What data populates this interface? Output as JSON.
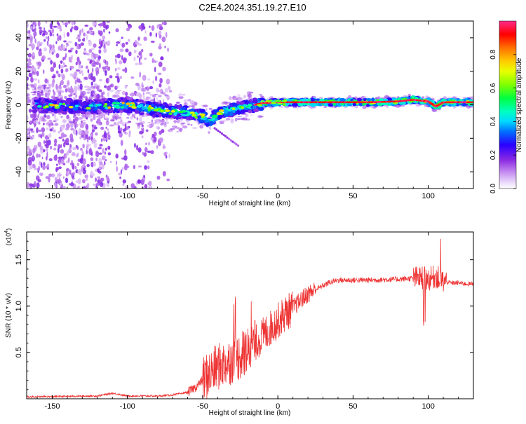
{
  "title": "C2E4.2024.351.19.27.E10",
  "chart_data": [
    {
      "type": "heatmap",
      "xlabel": "Height of straight line (km)",
      "ylabel": "Frequency (Hz)",
      "xlim": [
        -167,
        130
      ],
      "ylim": [
        -50,
        50
      ],
      "x_ticks": [
        -150,
        -100,
        -50,
        0,
        50,
        100
      ],
      "y_ticks": [
        -40,
        -20,
        0,
        20,
        40
      ],
      "colorbar": {
        "label": "Normalized spectral amplitude",
        "range": [
          0,
          1
        ],
        "ticks": [
          "0.0",
          "0.2",
          "0.4",
          "0.6",
          "0.8"
        ],
        "colors": [
          "#ffffff",
          "#d9b3f5",
          "#8b2be2",
          "#2a00ff",
          "#00b0ff",
          "#00ffd0",
          "#00ff00",
          "#c8ff00",
          "#ffff00",
          "#ff9000",
          "#ff0000",
          "#ff2a8a"
        ]
      },
      "ridge": {
        "x": [
          -160,
          -140,
          -120,
          -100,
          -80,
          -60,
          -50,
          -45,
          -40,
          -30,
          -20,
          -10,
          0,
          20,
          40,
          60,
          80,
          90,
          100,
          105,
          110,
          130
        ],
        "y": [
          0,
          -1,
          -1,
          0,
          -3,
          -5,
          -7,
          -10,
          -5,
          -3,
          -1,
          1,
          1.5,
          1.5,
          1.5,
          1.5,
          2,
          3,
          2,
          -1,
          1.5,
          1.5
        ]
      }
    },
    {
      "type": "line",
      "xlabel": "Height of straight line (km)",
      "ylabel": "SNR (10 * v/v)",
      "y_multiplier": "(x10",
      "y_multiplier_exp": "4",
      "y_multiplier_close": ")",
      "xlim": [
        -167,
        130
      ],
      "ylim": [
        0,
        1.8
      ],
      "x_ticks": [
        -150,
        -100,
        -50,
        0,
        50,
        100
      ],
      "y_ticks": [
        "0.5",
        "1.0",
        "1.5"
      ],
      "line_color": "#ee3333",
      "trend": {
        "x": [
          -167,
          -120,
          -110,
          -100,
          -90,
          -80,
          -70,
          -60,
          -55,
          -50,
          -45,
          -40,
          -35,
          -30,
          -25,
          -20,
          -15,
          -10,
          -5,
          0,
          5,
          10,
          15,
          20,
          25,
          30,
          35,
          40,
          60,
          80,
          90,
          95,
          100,
          105,
          110,
          115,
          120,
          125,
          130
        ],
        "y": [
          0.02,
          0.03,
          0.06,
          0.03,
          0.03,
          0.03,
          0.04,
          0.07,
          0.12,
          0.2,
          0.28,
          0.34,
          0.38,
          0.42,
          0.46,
          0.52,
          0.6,
          0.68,
          0.76,
          0.84,
          0.92,
          0.98,
          1.06,
          1.13,
          1.18,
          1.22,
          1.26,
          1.28,
          1.28,
          1.29,
          1.3,
          1.31,
          1.29,
          1.32,
          1.27,
          1.25,
          1.25,
          1.24,
          1.24
        ]
      }
    }
  ]
}
